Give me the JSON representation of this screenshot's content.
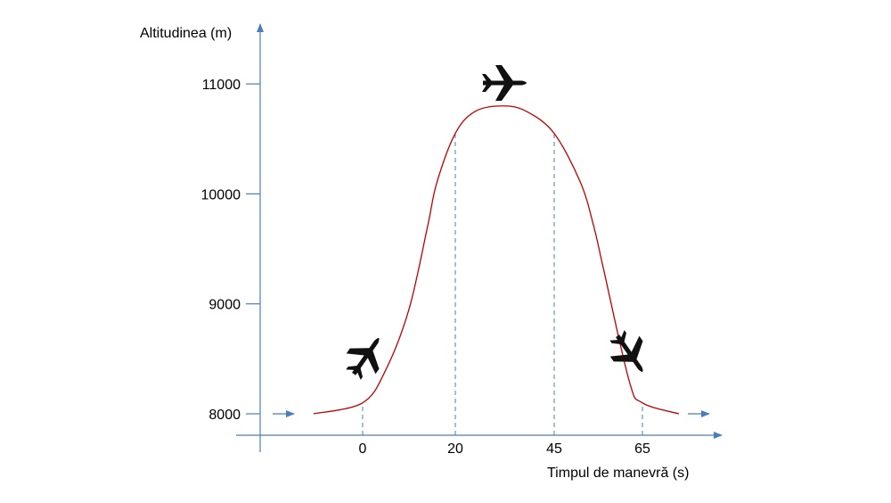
{
  "chart_data": {
    "type": "line",
    "ylabel": "Altitudinea (m)",
    "xlabel": "Timpul de manevră (s)",
    "y_ticks": [
      8000,
      9000,
      10000,
      11000
    ],
    "x_ticks": [
      0,
      20,
      45,
      65
    ],
    "series": [
      {
        "x": [
          -10,
          0,
          5,
          10,
          14,
          16,
          20,
          25,
          32,
          38,
          45,
          51,
          54,
          56,
          62,
          65,
          72
        ],
        "y": [
          8000,
          8100,
          8400,
          8950,
          9700,
          10100,
          10550,
          10750,
          10800,
          10750,
          10550,
          10100,
          9700,
          9350,
          8300,
          8100,
          8000
        ]
      }
    ],
    "colors": {
      "curve": "#c00000",
      "axis": "#4a7ebb",
      "marker": "#4a7ebb"
    },
    "icons": [
      "airplane-climbing-icon",
      "airplane-level-icon",
      "airplane-descending-icon"
    ]
  }
}
